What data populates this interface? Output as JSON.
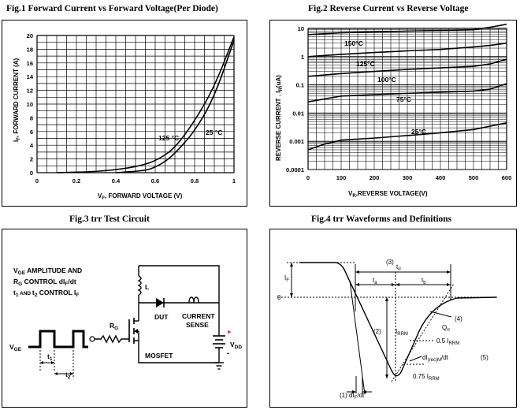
{
  "figures": {
    "fig1": {
      "title": "Fig.1  Forward Current vs Forward Voltage(Per Diode)"
    },
    "fig2": {
      "title": "Fig.2  Reverse Current vs Reverse Voltage"
    },
    "fig3": {
      "title": "Fig.3  trr Test Circuit"
    },
    "fig4": {
      "title": "Fig.4 trr Waveforms and Definitions"
    }
  },
  "chart_data": [
    {
      "type": "line",
      "title": "Fig.1  Forward Current vs Forward Voltage(Per Diode)",
      "xlabel_main": "V",
      "xlabel_sub": "F",
      "xlabel_rest": ", FORWARD VOLTAGE (V)",
      "ylabel_main": "I",
      "ylabel_sub": "F",
      "ylabel_rest": ", FORWARD CURRENT (A)",
      "xlim": [
        0,
        1
      ],
      "ylim": [
        0,
        20
      ],
      "x_ticks": [
        "0",
        "0.2",
        "0.4",
        "0.6",
        "0.8",
        "1"
      ],
      "y_ticks": [
        "0",
        "2",
        "4",
        "6",
        "8",
        "10",
        "12",
        "14",
        "16",
        "18",
        "20"
      ],
      "series": [
        {
          "name": "125 °C",
          "x": [
            0.1,
            0.3,
            0.45,
            0.55,
            0.62,
            0.7,
            0.8,
            0.9,
            1.0
          ],
          "y": [
            0,
            0.15,
            0.6,
            1.2,
            2.0,
            3.6,
            7.5,
            12.5,
            19.8
          ]
        },
        {
          "name": "25 °C",
          "x": [
            0.4,
            0.55,
            0.6,
            0.65,
            0.7,
            0.8,
            0.9,
            1.0
          ],
          "y": [
            0,
            0.3,
            0.8,
            1.6,
            2.8,
            6.0,
            11.0,
            19.3
          ]
        }
      ]
    },
    {
      "type": "line",
      "title": "Fig.2  Reverse Current vs Reverse Voltage",
      "xlabel_main": "V",
      "xlabel_sub": "R",
      "xlabel_rest": ",REVERSE VOLTAGE(V)",
      "ylabel_main": "REVERSE CURRENT . I",
      "ylabel_sub": "R",
      "ylabel_rest": "(uA)",
      "xlim": [
        0,
        600
      ],
      "ylim": [
        0.0001,
        10
      ],
      "y_scale": "log",
      "x_ticks": [
        "0",
        "100",
        "200",
        "300",
        "400",
        "500",
        "600"
      ],
      "y_ticks": [
        "0.0001",
        "0.001",
        "0.01",
        "0.1",
        "1",
        "10"
      ],
      "series": [
        {
          "name": "150°C",
          "x": [
            0,
            100,
            200,
            300,
            400,
            500,
            550,
            600
          ],
          "y": [
            6,
            7,
            7.5,
            8,
            8.5,
            9,
            11,
            14
          ]
        },
        {
          "name": "125°C",
          "x": [
            0,
            100,
            200,
            300,
            400,
            500,
            550,
            600
          ],
          "y": [
            1,
            1.2,
            1.4,
            1.6,
            1.8,
            2.2,
            2.5,
            3.0
          ]
        },
        {
          "name": "100°C",
          "x": [
            0,
            100,
            200,
            300,
            400,
            500,
            550,
            600
          ],
          "y": [
            0.2,
            0.25,
            0.3,
            0.35,
            0.4,
            0.45,
            0.55,
            0.8
          ]
        },
        {
          "name": "75°C",
          "x": [
            0,
            100,
            200,
            300,
            400,
            500,
            550,
            600
          ],
          "y": [
            0.025,
            0.04,
            0.045,
            0.05,
            0.055,
            0.06,
            0.07,
            0.11
          ]
        },
        {
          "name": "25°C",
          "x": [
            0,
            50,
            100,
            200,
            300,
            400,
            500,
            600
          ],
          "y": [
            0.0005,
            0.0008,
            0.0011,
            0.0013,
            0.0016,
            0.002,
            0.0026,
            0.0045
          ]
        }
      ]
    }
  ],
  "circuit": {
    "line1_main": "V",
    "line1_sub": "GE",
    "line1_rest": " AMPLITUDE AND",
    "line2_main": "R",
    "line2_sub": "G",
    "line2_rest": " CONTROL dI",
    "line2_sub2": "F",
    "line2_tail": "/dt",
    "line3_a": "t",
    "line3_a_sub": "1",
    "line3_mid": " AND ",
    "line3_b": "t",
    "line3_b_sub": "2",
    "line3_rest": " CONTROL I",
    "line3_sub3": "F",
    "inductor": "L",
    "dut": "DUT",
    "current": "CURRENT",
    "sense": "SENSE",
    "rg_main": "R",
    "rg_sub": "G",
    "vge_main": "V",
    "vge_sub": "GE",
    "vdd_main": "V",
    "vdd_sub": "DD",
    "plus": "+",
    "minus": "-",
    "mosfet": "MOSFET",
    "t1_main": "t",
    "t1_sub": "1",
    "t2_main": "t",
    "t2_sub": "2"
  },
  "waveform": {
    "if_main": "I",
    "if_sub": "F",
    "zero": "0",
    "n1": "(1)",
    "dif_main": "dI",
    "dif_sub": "F",
    "dif_rest": "/dt",
    "n2": "(2)",
    "irrm_main": "I",
    "irrm_sub": "RRM",
    "n3": "(3)",
    "trr_main": "t",
    "trr_sub": "rr",
    "ta_main": "t",
    "ta_sub": "a",
    "tb_main": "t",
    "tb_sub": "b",
    "n4": "(4)",
    "qrr_main": "Q",
    "qrr_sub": "rr",
    "half_pre": "0.5 I",
    "half_sub": "RRM",
    "slope_pre": "dI",
    "slope_sub": "(rec)M",
    "slope_rest": "/dt",
    "n5": "(5)",
    "q3_pre": "0.75 I",
    "q3_sub": "RRM"
  }
}
